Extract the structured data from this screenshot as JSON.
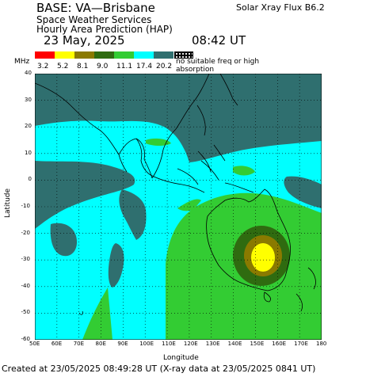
{
  "header": {
    "base": "BASE: VA—Brisbane",
    "service": "Space Weather Services",
    "product": "Hourly Area Prediction (HAP)",
    "date": "23 May, 2025",
    "time": "08:42 UT",
    "flux": "Solar Xray Flux B6.2"
  },
  "legend": {
    "unit": "MHz",
    "no_suitable": "no suitable freq or high absorption",
    "items": [
      {
        "label": "3.2",
        "color": "#ff0000"
      },
      {
        "label": "5.2",
        "color": "#ffff00"
      },
      {
        "label": "8.1",
        "color": "#8a7a00"
      },
      {
        "label": "9.0",
        "color": "#2f6b10"
      },
      {
        "label": "11.1",
        "color": "#33cc33"
      },
      {
        "label": "17.4",
        "color": "#00ffff"
      },
      {
        "label": "20.2",
        "color": "#2f6f6f"
      }
    ]
  },
  "axes": {
    "xlabel": "Longitude",
    "ylabel": "Latitude",
    "x_ticks": [
      "50E",
      "60E",
      "70E",
      "80E",
      "90E",
      "100E",
      "110E",
      "120E",
      "130E",
      "140E",
      "150E",
      "160E",
      "170E",
      "180"
    ],
    "y_ticks": [
      "40",
      "30",
      "20",
      "10",
      "0",
      "-10",
      "-20",
      "-30",
      "-40",
      "-50",
      "-60"
    ]
  },
  "footer": "Created at 23/05/2025 08:49:28 UT (X-ray data at 23/05/2025 0841 UT)"
}
